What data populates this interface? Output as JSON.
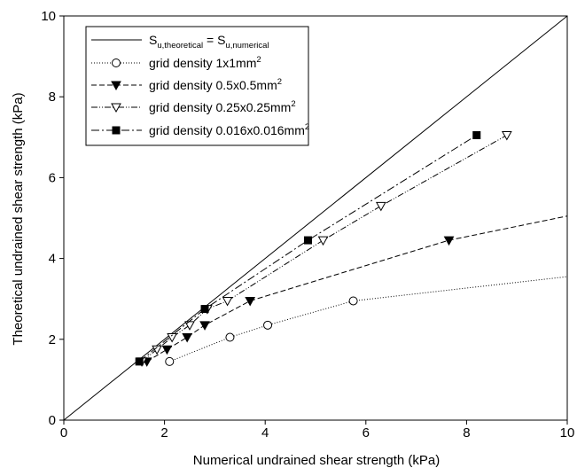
{
  "chart_data": {
    "type": "line",
    "xlabel": "Numerical undrained shear strength (kPa)",
    "ylabel": "Theoretical undrained shear strength (kPa)",
    "xlim": [
      0,
      10
    ],
    "ylim": [
      0,
      10
    ],
    "x_ticks": [
      0,
      2,
      4,
      6,
      8,
      10
    ],
    "y_ticks": [
      0,
      2,
      4,
      6,
      8,
      10
    ],
    "x_tick_labels": [
      "0",
      "2",
      "4",
      "6",
      "8",
      "10"
    ],
    "y_tick_labels": [
      "0",
      "2",
      "4",
      "6",
      "8",
      "10"
    ],
    "grid": false,
    "legend_position": "top-left",
    "series": [
      {
        "name": "S_u,theoretical = S_u,numerical",
        "legend_label": {
          "s1": "S",
          "sub1": "u,theoretical",
          "eq": " = S",
          "sub2": "u,numerical"
        },
        "style": "solid",
        "marker": "none",
        "x": [
          0,
          10
        ],
        "y": [
          0,
          10
        ]
      },
      {
        "name": "grid density 1x1mm²",
        "legend_label": {
          "main": "grid density 1x1mm",
          "sup": "2"
        },
        "style": "dotted",
        "marker": "open-circle",
        "x": [
          2.1,
          3.3,
          4.05,
          5.75
        ],
        "y": [
          1.45,
          2.05,
          2.35,
          2.95
        ],
        "tail_to": [
          10,
          3.55
        ]
      },
      {
        "name": "grid density 0.5x0.5mm²",
        "legend_label": {
          "main": "grid density 0.5x0.5mm",
          "sup": "2"
        },
        "style": "dashed",
        "marker": "filled-triangle-down",
        "x": [
          1.65,
          2.05,
          2.45,
          2.8,
          3.7,
          7.65
        ],
        "y": [
          1.45,
          1.75,
          2.05,
          2.35,
          2.95,
          4.45
        ],
        "tail_to": [
          10,
          5.05
        ]
      },
      {
        "name": "grid density 0.25x0.25mm²",
        "legend_label": {
          "main": "grid density 0.25x0.25mm",
          "sup": "2"
        },
        "style": "dash-dot-dot",
        "marker": "open-triangle-down",
        "x": [
          1.55,
          1.85,
          2.15,
          2.5,
          2.85,
          3.25,
          5.15,
          6.3,
          8.8
        ],
        "y": [
          1.45,
          1.75,
          2.05,
          2.35,
          2.75,
          2.95,
          4.45,
          5.3,
          7.05
        ]
      },
      {
        "name": "grid density 0.016x0.016mm²",
        "legend_label": {
          "main": "grid density 0.016x0.016mm",
          "sup": "2"
        },
        "style": "dash-dot",
        "marker": "filled-square",
        "x": [
          1.5,
          2.8,
          4.85,
          8.2
        ],
        "y": [
          1.45,
          2.75,
          4.45,
          7.05
        ]
      }
    ]
  }
}
